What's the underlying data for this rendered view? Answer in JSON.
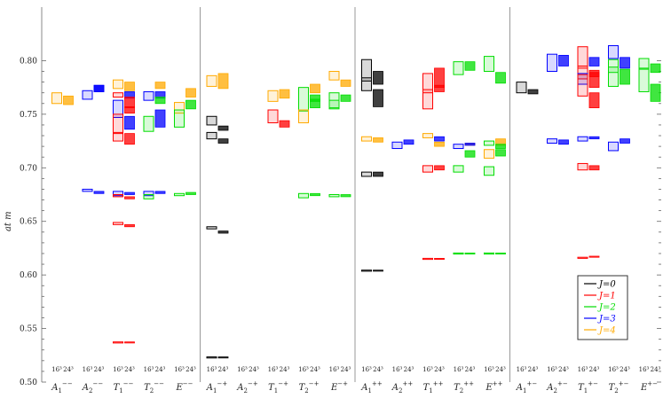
{
  "chart_data": {
    "type": "scatter",
    "ylabel": "a_t m",
    "ylim": [
      0.5,
      0.85
    ],
    "yticks": [
      "0.50",
      "0.55",
      "0.60",
      "0.65",
      "0.70",
      "0.75",
      "0.80"
    ],
    "volumes": [
      "16³",
      "24³"
    ],
    "groups": [
      {
        "irreps": [
          {
            "name": "A",
            "sub": "1",
            "sup": "−−"
          },
          {
            "name": "A",
            "sub": "2",
            "sup": "−−"
          },
          {
            "name": "T",
            "sub": "1",
            "sup": "−−"
          },
          {
            "name": "T",
            "sub": "2",
            "sup": "−−"
          },
          {
            "name": "E",
            "sub": "",
            "sup": "−−"
          }
        ]
      },
      {
        "irreps": [
          {
            "name": "A",
            "sub": "1",
            "sup": "−+"
          },
          {
            "name": "A",
            "sub": "2",
            "sup": "−+"
          },
          {
            "name": "T",
            "sub": "1",
            "sup": "−+"
          },
          {
            "name": "T",
            "sub": "2",
            "sup": "−+"
          },
          {
            "name": "E",
            "sub": "",
            "sup": "−+"
          }
        ]
      },
      {
        "irreps": [
          {
            "name": "A",
            "sub": "1",
            "sup": "++"
          },
          {
            "name": "A",
            "sub": "2",
            "sup": "++"
          },
          {
            "name": "T",
            "sub": "1",
            "sup": "++"
          },
          {
            "name": "T",
            "sub": "2",
            "sup": "++"
          },
          {
            "name": "E",
            "sub": "",
            "sup": "++"
          }
        ]
      },
      {
        "irreps": [
          {
            "name": "A",
            "sub": "1",
            "sup": "+−"
          },
          {
            "name": "A",
            "sub": "2",
            "sup": "+−"
          },
          {
            "name": "T",
            "sub": "1",
            "sup": "+−"
          },
          {
            "name": "T",
            "sub": "2",
            "sup": "+−"
          },
          {
            "name": "E",
            "sub": "",
            "sup": "+−"
          }
        ]
      }
    ],
    "legend": {
      "position": "bottom-right",
      "entries": [
        {
          "label": "J=0",
          "color": "#000000"
        },
        {
          "label": "J=1",
          "color": "#ff0000"
        },
        {
          "label": "J=2",
          "color": "#00dd00"
        },
        {
          "label": "J=3",
          "color": "#0000ff"
        },
        {
          "label": "J=4",
          "color": "#ffaa00"
        }
      ]
    },
    "points": [
      {
        "irrep": 0,
        "vol": 0,
        "J": 4,
        "y": 0.765,
        "err": 0.005
      },
      {
        "irrep": 0,
        "vol": 1,
        "J": 4,
        "y": 0.763,
        "err": 0.004
      },
      {
        "irrep": 1,
        "vol": 0,
        "J": 3,
        "y": 0.768,
        "err": 0.004
      },
      {
        "irrep": 1,
        "vol": 0,
        "J": 3,
        "y": 0.679,
        "err": 0.001
      },
      {
        "irrep": 1,
        "vol": 1,
        "J": 3,
        "y": 0.774,
        "err": 0.003
      },
      {
        "irrep": 1,
        "vol": 1,
        "J": 3,
        "y": 0.677,
        "err": 0.001
      },
      {
        "irrep": 1,
        "vol": 1,
        "J": 3,
        "y": 0.774,
        "err": 0.003
      },
      {
        "irrep": 2,
        "vol": 0,
        "J": 4,
        "y": 0.778,
        "err": 0.004
      },
      {
        "irrep": 2,
        "vol": 0,
        "J": 1,
        "y": 0.768,
        "err": 0.002
      },
      {
        "irrep": 2,
        "vol": 0,
        "J": 3,
        "y": 0.755,
        "err": 0.008
      },
      {
        "irrep": 2,
        "vol": 0,
        "J": 1,
        "y": 0.741,
        "err": 0.009
      },
      {
        "irrep": 2,
        "vol": 0,
        "J": 1,
        "y": 0.729,
        "err": 0.004
      },
      {
        "irrep": 2,
        "vol": 0,
        "J": 3,
        "y": 0.676,
        "err": 0.002
      },
      {
        "irrep": 2,
        "vol": 0,
        "J": 1,
        "y": 0.674,
        "err": 0.001
      },
      {
        "irrep": 2,
        "vol": 0,
        "J": 1,
        "y": 0.648,
        "err": 0.001
      },
      {
        "irrep": 2,
        "vol": 0,
        "J": 1,
        "y": 0.537,
        "err": 0.0005
      },
      {
        "irrep": 2,
        "vol": 1,
        "J": 4,
        "y": 0.776,
        "err": 0.004
      },
      {
        "irrep": 2,
        "vol": 1,
        "J": 3,
        "y": 0.768,
        "err": 0.003
      },
      {
        "irrep": 2,
        "vol": 1,
        "J": 1,
        "y": 0.761,
        "err": 0.005
      },
      {
        "irrep": 2,
        "vol": 1,
        "J": 1,
        "y": 0.754,
        "err": 0.003
      },
      {
        "irrep": 2,
        "vol": 1,
        "J": 3,
        "y": 0.742,
        "err": 0.006
      },
      {
        "irrep": 2,
        "vol": 1,
        "J": 1,
        "y": 0.727,
        "err": 0.005
      },
      {
        "irrep": 2,
        "vol": 1,
        "J": 3,
        "y": 0.676,
        "err": 0.001
      },
      {
        "irrep": 2,
        "vol": 1,
        "J": 1,
        "y": 0.672,
        "err": 0.001
      },
      {
        "irrep": 2,
        "vol": 1,
        "J": 1,
        "y": 0.646,
        "err": 0.001
      },
      {
        "irrep": 2,
        "vol": 1,
        "J": 1,
        "y": 0.537,
        "err": 0.0005
      },
      {
        "irrep": 3,
        "vol": 0,
        "J": 3,
        "y": 0.767,
        "err": 0.004
      },
      {
        "irrep": 3,
        "vol": 0,
        "J": 2,
        "y": 0.741,
        "err": 0.007
      },
      {
        "irrep": 3,
        "vol": 0,
        "J": 3,
        "y": 0.676,
        "err": 0.002
      },
      {
        "irrep": 3,
        "vol": 0,
        "J": 2,
        "y": 0.673,
        "err": 0.002
      },
      {
        "irrep": 3,
        "vol": 1,
        "J": 4,
        "y": 0.777,
        "err": 0.003
      },
      {
        "irrep": 3,
        "vol": 1,
        "J": 3,
        "y": 0.768,
        "err": 0.003
      },
      {
        "irrep": 3,
        "vol": 1,
        "J": 2,
        "y": 0.763,
        "err": 0.003
      },
      {
        "irrep": 3,
        "vol": 1,
        "J": 3,
        "y": 0.746,
        "err": 0.008
      },
      {
        "irrep": 3,
        "vol": 1,
        "J": 3,
        "y": 0.677,
        "err": 0.001
      },
      {
        "irrep": 4,
        "vol": 0,
        "J": 4,
        "y": 0.756,
        "err": 0.005
      },
      {
        "irrep": 4,
        "vol": 0,
        "J": 2,
        "y": 0.746,
        "err": 0.008
      },
      {
        "irrep": 4,
        "vol": 0,
        "J": 2,
        "y": 0.675,
        "err": 0.001
      },
      {
        "irrep": 4,
        "vol": 1,
        "J": 4,
        "y": 0.77,
        "err": 0.004
      },
      {
        "irrep": 4,
        "vol": 1,
        "J": 2,
        "y": 0.759,
        "err": 0.004
      },
      {
        "irrep": 4,
        "vol": 1,
        "J": 2,
        "y": 0.676,
        "err": 0.001
      },
      {
        "irrep": 5,
        "vol": 0,
        "J": 4,
        "y": 0.781,
        "err": 0.005
      },
      {
        "irrep": 5,
        "vol": 0,
        "J": 0,
        "y": 0.744,
        "err": 0.004
      },
      {
        "irrep": 5,
        "vol": 0,
        "J": 0,
        "y": 0.73,
        "err": 0.003
      },
      {
        "irrep": 5,
        "vol": 0,
        "J": 0,
        "y": 0.644,
        "err": 0.001
      },
      {
        "irrep": 5,
        "vol": 0,
        "J": 0,
        "y": 0.523,
        "err": 0.0005
      },
      {
        "irrep": 5,
        "vol": 1,
        "J": 4,
        "y": 0.781,
        "err": 0.007
      },
      {
        "irrep": 5,
        "vol": 1,
        "J": 0,
        "y": 0.737,
        "err": 0.002
      },
      {
        "irrep": 5,
        "vol": 1,
        "J": 0,
        "y": 0.725,
        "err": 0.002
      },
      {
        "irrep": 5,
        "vol": 1,
        "J": 0,
        "y": 0.64,
        "err": 0.001
      },
      {
        "irrep": 5,
        "vol": 1,
        "J": 0,
        "y": 0.523,
        "err": 0.0005
      },
      {
        "irrep": 7,
        "vol": 0,
        "J": 4,
        "y": 0.767,
        "err": 0.005
      },
      {
        "irrep": 7,
        "vol": 0,
        "J": 1,
        "y": 0.748,
        "err": 0.006
      },
      {
        "irrep": 7,
        "vol": 1,
        "J": 4,
        "y": 0.769,
        "err": 0.004
      },
      {
        "irrep": 7,
        "vol": 1,
        "J": 1,
        "y": 0.741,
        "err": 0.003
      },
      {
        "irrep": 8,
        "vol": 0,
        "J": 2,
        "y": 0.764,
        "err": 0.011
      },
      {
        "irrep": 8,
        "vol": 0,
        "J": 4,
        "y": 0.748,
        "err": 0.006
      },
      {
        "irrep": 8,
        "vol": 0,
        "J": 2,
        "y": 0.674,
        "err": 0.002
      },
      {
        "irrep": 8,
        "vol": 1,
        "J": 4,
        "y": 0.774,
        "err": 0.004
      },
      {
        "irrep": 8,
        "vol": 1,
        "J": 2,
        "y": 0.765,
        "err": 0.003
      },
      {
        "irrep": 8,
        "vol": 1,
        "J": 2,
        "y": 0.76,
        "err": 0.004
      },
      {
        "irrep": 8,
        "vol": 1,
        "J": 2,
        "y": 0.675,
        "err": 0.001
      },
      {
        "irrep": 9,
        "vol": 0,
        "J": 4,
        "y": 0.786,
        "err": 0.004
      },
      {
        "irrep": 9,
        "vol": 0,
        "J": 2,
        "y": 0.763,
        "err": 0.007
      },
      {
        "irrep": 9,
        "vol": 0,
        "J": 2,
        "y": 0.759,
        "err": 0.004
      },
      {
        "irrep": 9,
        "vol": 0,
        "J": 2,
        "y": 0.674,
        "err": 0.001
      },
      {
        "irrep": 9,
        "vol": 1,
        "J": 4,
        "y": 0.779,
        "err": 0.003
      },
      {
        "irrep": 9,
        "vol": 1,
        "J": 2,
        "y": 0.765,
        "err": 0.003
      },
      {
        "irrep": 9,
        "vol": 1,
        "J": 2,
        "y": 0.674,
        "err": 0.001
      },
      {
        "irrep": 10,
        "vol": 0,
        "J": 0,
        "y": 0.791,
        "err": 0.01
      },
      {
        "irrep": 10,
        "vol": 0,
        "J": 0,
        "y": 0.778,
        "err": 0.006
      },
      {
        "irrep": 10,
        "vol": 0,
        "J": 4,
        "y": 0.727,
        "err": 0.002
      },
      {
        "irrep": 10,
        "vol": 0,
        "J": 0,
        "y": 0.694,
        "err": 0.002
      },
      {
        "irrep": 10,
        "vol": 0,
        "J": 0,
        "y": 0.604,
        "err": 0.0005
      },
      {
        "irrep": 10,
        "vol": 1,
        "J": 0,
        "y": 0.784,
        "err": 0.006
      },
      {
        "irrep": 10,
        "vol": 1,
        "J": 0,
        "y": 0.765,
        "err": 0.008
      },
      {
        "irrep": 10,
        "vol": 1,
        "J": 4,
        "y": 0.726,
        "err": 0.002
      },
      {
        "irrep": 10,
        "vol": 1,
        "J": 0,
        "y": 0.694,
        "err": 0.002
      },
      {
        "irrep": 10,
        "vol": 1,
        "J": 0,
        "y": 0.604,
        "err": 0.0005
      },
      {
        "irrep": 11,
        "vol": 0,
        "J": 3,
        "y": 0.721,
        "err": 0.003
      },
      {
        "irrep": 11,
        "vol": 1,
        "J": 3,
        "y": 0.724,
        "err": 0.002
      },
      {
        "irrep": 12,
        "vol": 0,
        "J": 1,
        "y": 0.779,
        "err": 0.009
      },
      {
        "irrep": 12,
        "vol": 0,
        "J": 1,
        "y": 0.764,
        "err": 0.009
      },
      {
        "irrep": 12,
        "vol": 0,
        "J": 4,
        "y": 0.73,
        "err": 0.002
      },
      {
        "irrep": 12,
        "vol": 0,
        "J": 1,
        "y": 0.699,
        "err": 0.003
      },
      {
        "irrep": 12,
        "vol": 0,
        "J": 1,
        "y": 0.615,
        "err": 0.0005
      },
      {
        "irrep": 12,
        "vol": 1,
        "J": 1,
        "y": 0.784,
        "err": 0.009
      },
      {
        "irrep": 12,
        "vol": 1,
        "J": 1,
        "y": 0.774,
        "err": 0.003
      },
      {
        "irrep": 12,
        "vol": 1,
        "J": 3,
        "y": 0.727,
        "err": 0.002
      },
      {
        "irrep": 12,
        "vol": 1,
        "J": 4,
        "y": 0.722,
        "err": 0.002
      },
      {
        "irrep": 12,
        "vol": 1,
        "J": 1,
        "y": 0.7,
        "err": 0.002
      },
      {
        "irrep": 12,
        "vol": 1,
        "J": 1,
        "y": 0.615,
        "err": 0.0005
      },
      {
        "irrep": 13,
        "vol": 0,
        "J": 2,
        "y": 0.793,
        "err": 0.006
      },
      {
        "irrep": 13,
        "vol": 0,
        "J": 3,
        "y": 0.72,
        "err": 0.002
      },
      {
        "irrep": 13,
        "vol": 0,
        "J": 2,
        "y": 0.699,
        "err": 0.003
      },
      {
        "irrep": 13,
        "vol": 0,
        "J": 2,
        "y": 0.62,
        "err": 0.0005
      },
      {
        "irrep": 13,
        "vol": 1,
        "J": 2,
        "y": 0.795,
        "err": 0.004
      },
      {
        "irrep": 13,
        "vol": 1,
        "J": 4,
        "y": 0.722,
        "err": 0.001
      },
      {
        "irrep": 13,
        "vol": 1,
        "J": 3,
        "y": 0.722,
        "err": 0.001
      },
      {
        "irrep": 13,
        "vol": 1,
        "J": 2,
        "y": 0.713,
        "err": 0.003
      },
      {
        "irrep": 13,
        "vol": 1,
        "J": 2,
        "y": 0.62,
        "err": 0.0005
      },
      {
        "irrep": 14,
        "vol": 0,
        "J": 2,
        "y": 0.797,
        "err": 0.007
      },
      {
        "irrep": 14,
        "vol": 0,
        "J": 2,
        "y": 0.723,
        "err": 0.002
      },
      {
        "irrep": 14,
        "vol": 0,
        "J": 4,
        "y": 0.713,
        "err": 0.004
      },
      {
        "irrep": 14,
        "vol": 0,
        "J": 2,
        "y": 0.697,
        "err": 0.004
      },
      {
        "irrep": 14,
        "vol": 0,
        "J": 2,
        "y": 0.62,
        "err": 0.0005
      },
      {
        "irrep": 14,
        "vol": 1,
        "J": 2,
        "y": 0.784,
        "err": 0.005
      },
      {
        "irrep": 14,
        "vol": 1,
        "J": 4,
        "y": 0.724,
        "err": 0.003
      },
      {
        "irrep": 14,
        "vol": 1,
        "J": 2,
        "y": 0.72,
        "err": 0.002
      },
      {
        "irrep": 14,
        "vol": 1,
        "J": 2,
        "y": 0.714,
        "err": 0.003
      },
      {
        "irrep": 14,
        "vol": 1,
        "J": 2,
        "y": 0.62,
        "err": 0.0005
      },
      {
        "irrep": 15,
        "vol": 0,
        "J": 0,
        "y": 0.775,
        "err": 0.005
      },
      {
        "irrep": 15,
        "vol": 1,
        "J": 0,
        "y": 0.771,
        "err": 0.002
      },
      {
        "irrep": 16,
        "vol": 0,
        "J": 3,
        "y": 0.798,
        "err": 0.008
      },
      {
        "irrep": 16,
        "vol": 0,
        "J": 3,
        "y": 0.725,
        "err": 0.002
      },
      {
        "irrep": 16,
        "vol": 1,
        "J": 3,
        "y": 0.8,
        "err": 0.005
      },
      {
        "irrep": 16,
        "vol": 1,
        "J": 3,
        "y": 0.724,
        "err": 0.002
      },
      {
        "irrep": 17,
        "vol": 0,
        "J": 1,
        "y": 0.803,
        "err": 0.01
      },
      {
        "irrep": 17,
        "vol": 0,
        "J": 1,
        "y": 0.789,
        "err": 0.006
      },
      {
        "irrep": 17,
        "vol": 0,
        "J": 3,
        "y": 0.783,
        "err": 0.005
      },
      {
        "irrep": 17,
        "vol": 0,
        "J": 1,
        "y": 0.777,
        "err": 0.01
      },
      {
        "irrep": 17,
        "vol": 0,
        "J": 3,
        "y": 0.727,
        "err": 0.002
      },
      {
        "irrep": 17,
        "vol": 0,
        "J": 1,
        "y": 0.701,
        "err": 0.003
      },
      {
        "irrep": 17,
        "vol": 0,
        "J": 1,
        "y": 0.616,
        "err": 0.0005
      },
      {
        "irrep": 17,
        "vol": 1,
        "J": 3,
        "y": 0.799,
        "err": 0.004
      },
      {
        "irrep": 17,
        "vol": 1,
        "J": 1,
        "y": 0.788,
        "err": 0.003
      },
      {
        "irrep": 17,
        "vol": 1,
        "J": 1,
        "y": 0.782,
        "err": 0.007
      },
      {
        "irrep": 17,
        "vol": 1,
        "J": 1,
        "y": 0.763,
        "err": 0.007
      },
      {
        "irrep": 17,
        "vol": 1,
        "J": 3,
        "y": 0.728,
        "err": 0.001
      },
      {
        "irrep": 17,
        "vol": 1,
        "J": 1,
        "y": 0.7,
        "err": 0.002
      },
      {
        "irrep": 17,
        "vol": 1,
        "J": 1,
        "y": 0.617,
        "err": 0.0005
      },
      {
        "irrep": 18,
        "vol": 0,
        "J": 3,
        "y": 0.808,
        "err": 0.006
      },
      {
        "irrep": 18,
        "vol": 0,
        "J": 2,
        "y": 0.795,
        "err": 0.006
      },
      {
        "irrep": 18,
        "vol": 0,
        "J": 2,
        "y": 0.785,
        "err": 0.009
      },
      {
        "irrep": 18,
        "vol": 0,
        "J": 3,
        "y": 0.72,
        "err": 0.004
      },
      {
        "irrep": 18,
        "vol": 1,
        "J": 3,
        "y": 0.798,
        "err": 0.005
      },
      {
        "irrep": 18,
        "vol": 1,
        "J": 2,
        "y": 0.785,
        "err": 0.007
      },
      {
        "irrep": 18,
        "vol": 1,
        "J": 3,
        "y": 0.725,
        "err": 0.002
      },
      {
        "irrep": 19,
        "vol": 0,
        "J": 2,
        "y": 0.797,
        "err": 0.005
      },
      {
        "irrep": 19,
        "vol": 0,
        "J": 2,
        "y": 0.782,
        "err": 0.011
      },
      {
        "irrep": 19,
        "vol": 1,
        "J": 2,
        "y": 0.793,
        "err": 0.004
      },
      {
        "irrep": 19,
        "vol": 1,
        "J": 2,
        "y": 0.77,
        "err": 0.008
      }
    ]
  }
}
